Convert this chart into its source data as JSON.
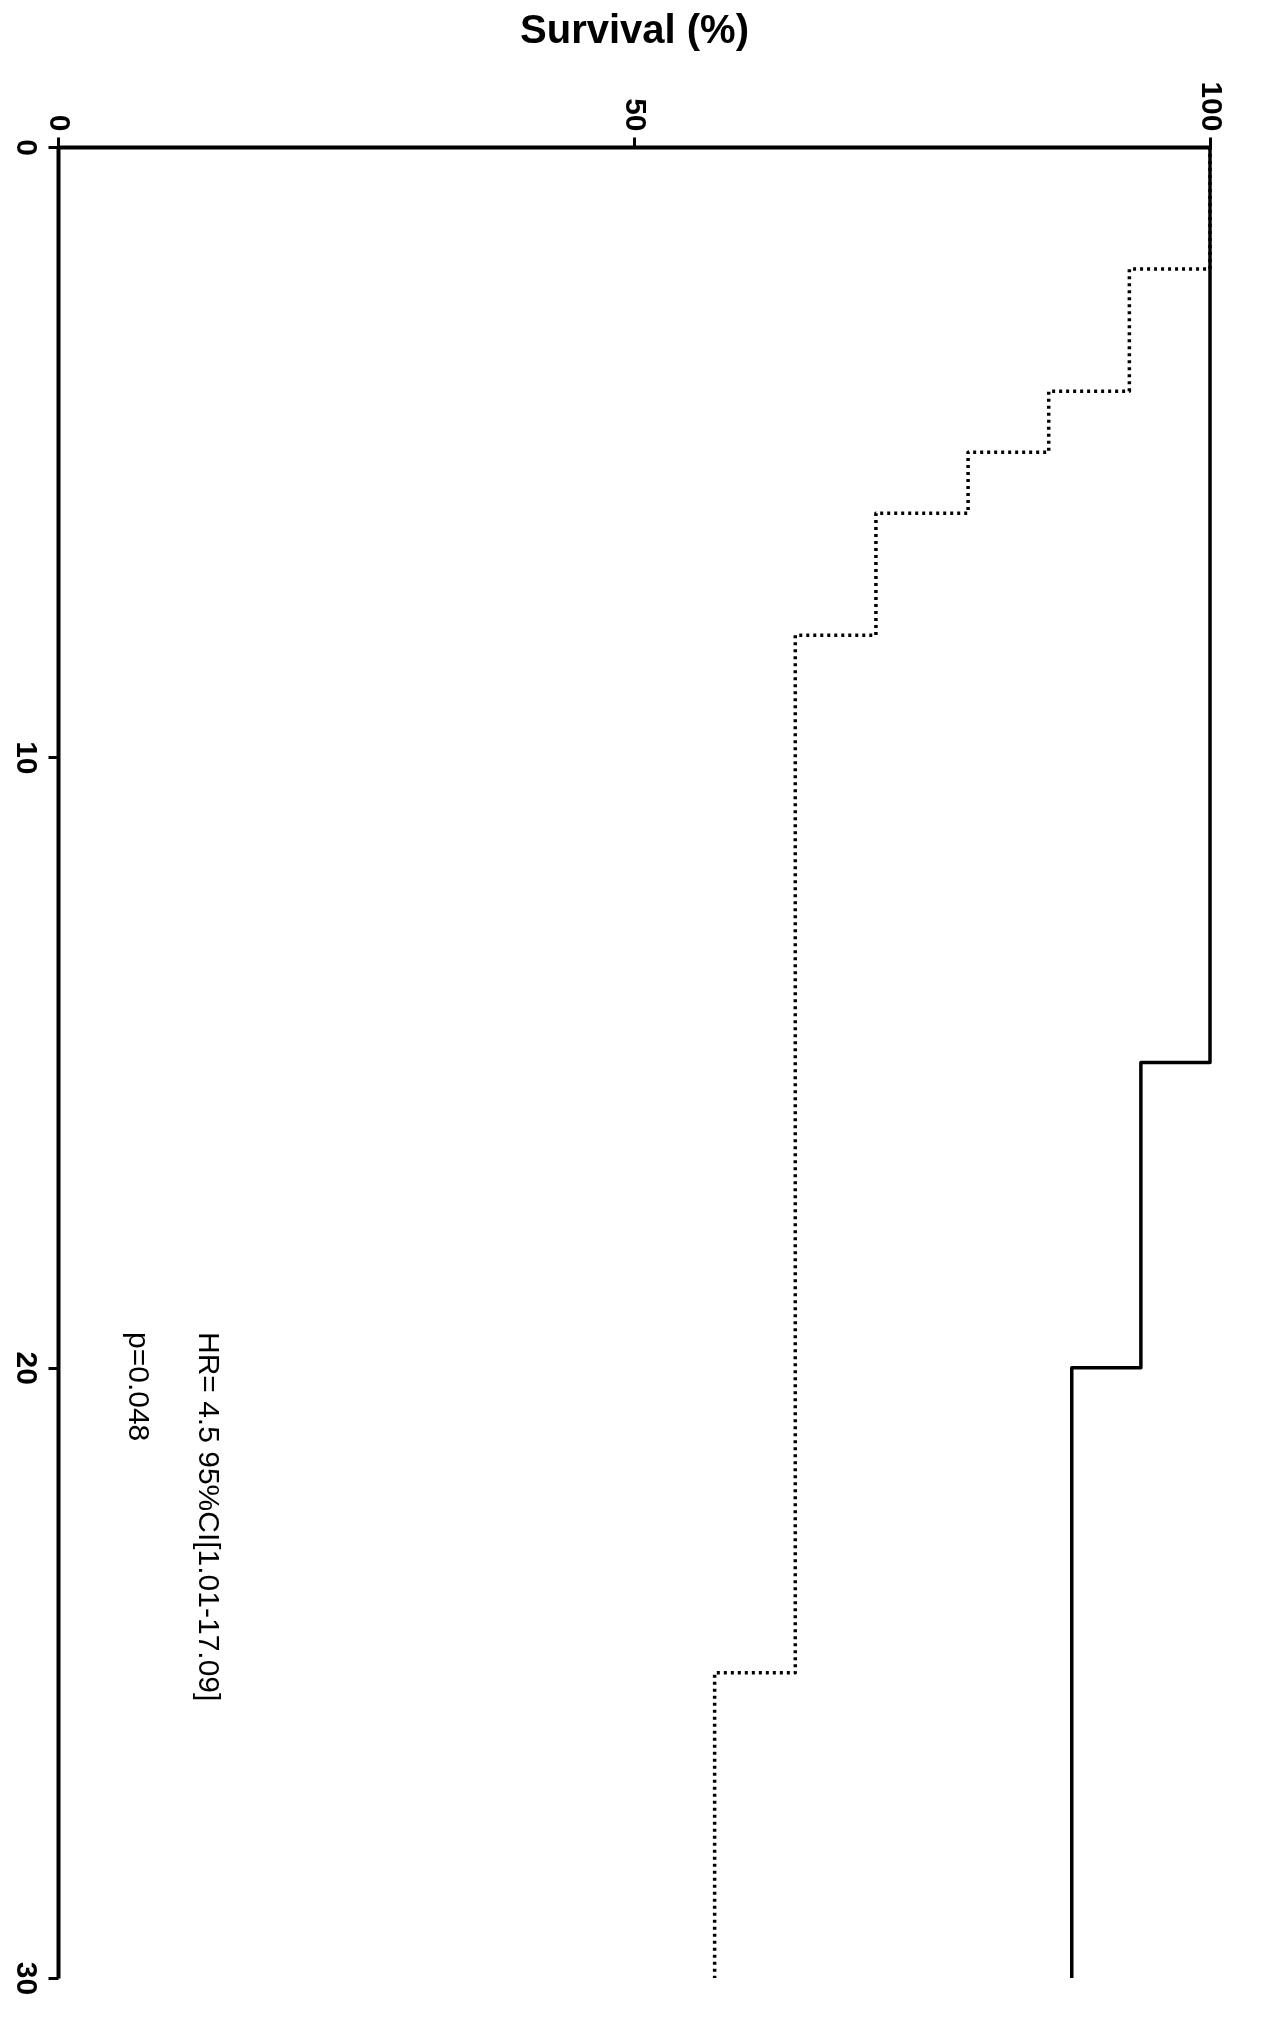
{
  "chart_data": {
    "type": "step",
    "xlabel": "Survival (%)",
    "xlim": [
      0,
      100
    ],
    "xticks": [
      0,
      50,
      100
    ],
    "ylim": [
      30,
      0
    ],
    "yticks": [
      0,
      10,
      20,
      30
    ],
    "grid": false,
    "series": [
      {
        "color": "#000000",
        "line_style": "dotted",
        "x": [
          100,
          93,
          86,
          79,
          71,
          64,
          57,
          57
        ],
        "values": [
          0,
          2,
          4,
          5,
          6,
          8,
          25,
          30
        ]
      },
      {
        "color": "#000000",
        "line_style": "solid",
        "x": [
          100,
          94,
          88,
          88
        ],
        "values": [
          0,
          15,
          20,
          30
        ]
      }
    ],
    "annotations": [
      "HR= 4.5 95%CI[1.01-17.09]",
      "p=0.048"
    ]
  }
}
